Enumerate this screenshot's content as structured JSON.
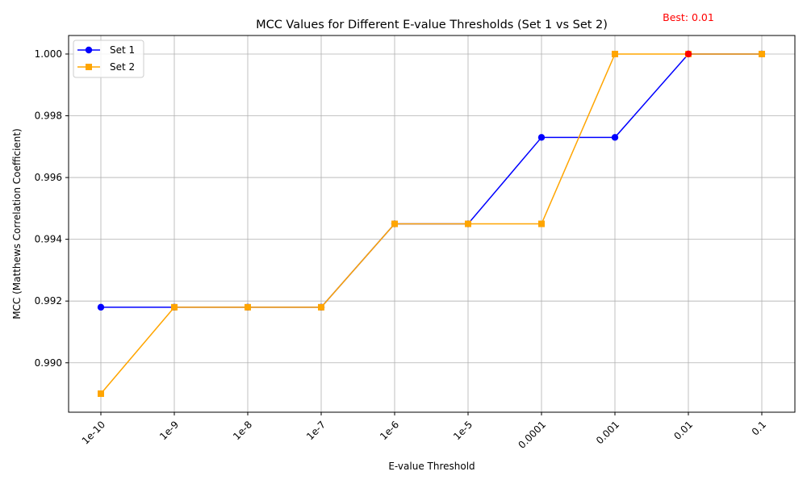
{
  "chart_data": {
    "type": "line",
    "title": "MCC Values for Different E-value Thresholds (Set 1 vs Set 2)",
    "xlabel": "E-value Threshold",
    "ylabel": "MCC (Matthews Correlation Coefficient)",
    "categories": [
      "1e-10",
      "1e-9",
      "1e-8",
      "1e-7",
      "1e-6",
      "1e-5",
      "0.0001",
      "0.001",
      "0.01",
      "0.1"
    ],
    "series": [
      {
        "name": "Set 1",
        "color": "#0000ff",
        "marker": "circle",
        "values": [
          0.9918,
          0.9918,
          0.9918,
          0.9918,
          0.9945,
          0.9945,
          0.9973,
          0.9973,
          1.0,
          1.0
        ]
      },
      {
        "name": "Set 2",
        "color": "#ffa500",
        "marker": "square",
        "values": [
          0.989,
          0.9918,
          0.9918,
          0.9918,
          0.9945,
          0.9945,
          0.9945,
          1.0,
          1.0,
          1.0
        ]
      }
    ],
    "highlight": {
      "category": "0.01",
      "value": 1.0,
      "color": "#ff0000",
      "label": "Best: 0.01"
    },
    "yticks": [
      "0.990",
      "0.992",
      "0.994",
      "0.996",
      "0.998",
      "1.000"
    ],
    "ylim": [
      0.9884,
      1.0006
    ],
    "grid": true,
    "legend_position": "top-left"
  }
}
